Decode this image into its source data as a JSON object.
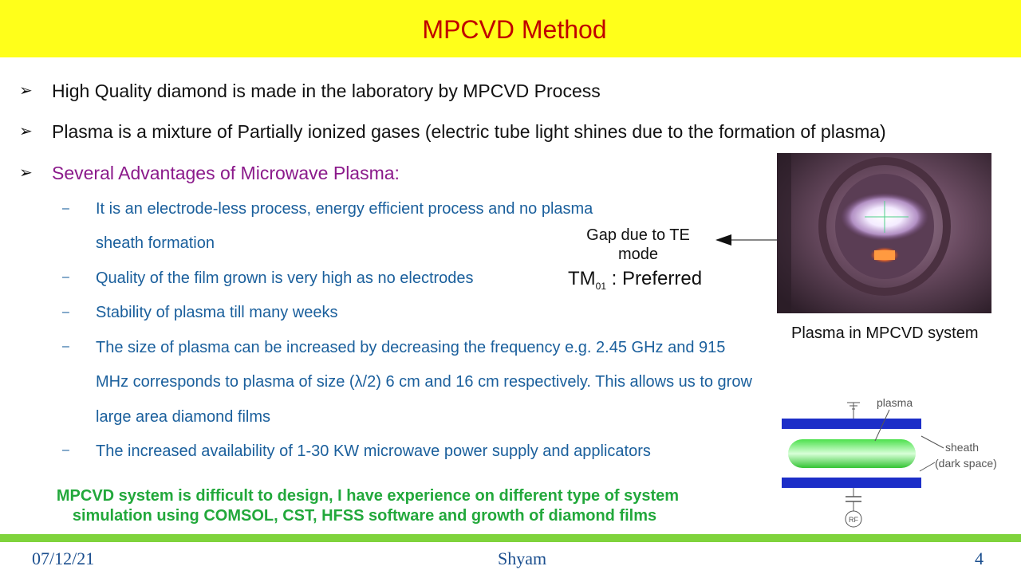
{
  "title": "MPCVD Method",
  "bullets": [
    {
      "marker": "➢",
      "text": "High Quality diamond is made in the laboratory by MPCVD Process"
    },
    {
      "marker": "➢",
      "text": "Plasma is a mixture of Partially ionized gases (electric tube light shines due to the formation of plasma)"
    },
    {
      "marker": "➢",
      "text": "Several Advantages of Microwave Plasma:"
    }
  ],
  "sub_marker": "–",
  "sub_items": [
    [
      "It is an electrode-less process, energy efficient process and no plasma",
      "sheath formation"
    ],
    [
      "Quality of the film grown is very high as no electrodes"
    ],
    [
      "Stability of plasma till many weeks"
    ],
    [
      "The size of plasma can be increased by decreasing the frequency e.g. 2.45 GHz and 915",
      "MHz corresponds to plasma of size (λ/2) 6 cm and 16 cm respectively. This allows us to grow",
      "large area diamond films"
    ],
    [
      "The increased availability of 1-30 KW microwave power supply and applicators"
    ]
  ],
  "annotation": {
    "gap_line1": "Gap due to TE",
    "gap_line2": "mode",
    "tm_base": "TM",
    "tm_sub": "01",
    "tm_suffix": " : Preferred"
  },
  "photo_caption": "Plasma in MPCVD system",
  "diagram": {
    "plasma_label": "plasma",
    "sheath_label": "sheath",
    "dark_space_label": "(dark space)",
    "rf_label": "RF"
  },
  "note_lines": [
    "MPCVD system is difficult to design, I have experience on different type of system",
    "simulation using COMSOL, CST, HFSS software and growth of diamond films"
  ],
  "footer": {
    "date": "07/12/21",
    "author": "Shyam",
    "page": "4"
  },
  "colors": {
    "title_bg": "#ffff1a",
    "title_text": "#c00000",
    "advantage_heading": "#8b1a8b",
    "sub_text": "#1a5f9c",
    "note_text": "#22a83b",
    "footer_line": "#7fd33c"
  }
}
